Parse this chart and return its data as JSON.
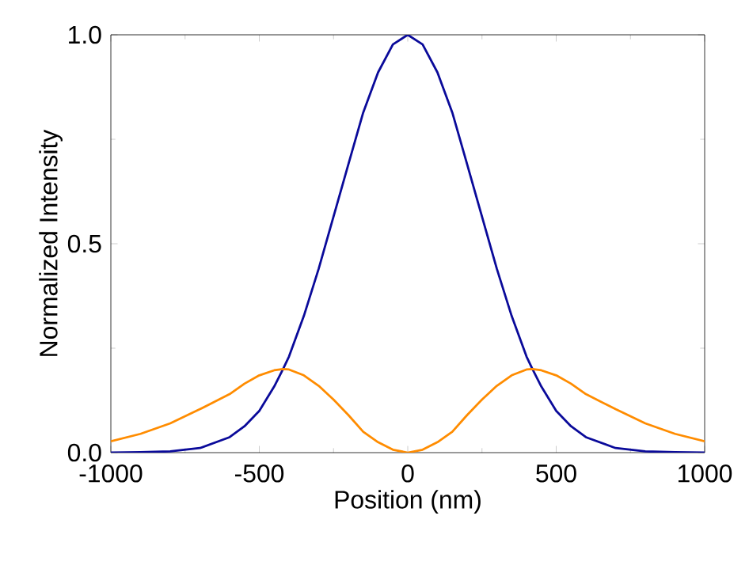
{
  "chart_data": {
    "type": "line",
    "xlabel": "Position (nm)",
    "ylabel": "Normalized Intensity",
    "xlim": [
      -1000,
      1000
    ],
    "ylim": [
      0,
      1
    ],
    "xticks": [
      -1000,
      -500,
      0,
      500,
      1000
    ],
    "yticks": [
      {
        "value": 0,
        "label": "0.0"
      },
      {
        "value": 0.5,
        "label": "0.5"
      },
      {
        "value": 1,
        "label": "1.0"
      }
    ],
    "x": [
      -1000,
      -900,
      -800,
      -700,
      -600,
      -550,
      -500,
      -450,
      -420,
      -400,
      -350,
      -300,
      -250,
      -200,
      -150,
      -100,
      -50,
      0,
      50,
      100,
      150,
      200,
      250,
      300,
      350,
      400,
      420,
      450,
      500,
      550,
      600,
      700,
      800,
      900,
      1000
    ],
    "series": [
      {
        "color": "#0a0a9a",
        "values": [
          0,
          0.001,
          0.003,
          0.011,
          0.037,
          0.063,
          0.1,
          0.158,
          0.2,
          0.23,
          0.327,
          0.44,
          0.565,
          0.69,
          0.814,
          0.91,
          0.977,
          1,
          0.977,
          0.91,
          0.814,
          0.69,
          0.565,
          0.44,
          0.327,
          0.23,
          0.2,
          0.158,
          0.1,
          0.063,
          0.037,
          0.011,
          0.003,
          0.001,
          0
        ]
      },
      {
        "color": "#ff8c00",
        "values": [
          0.027,
          0.045,
          0.07,
          0.104,
          0.14,
          0.165,
          0.185,
          0.197,
          0.2,
          0.199,
          0.185,
          0.16,
          0.127,
          0.09,
          0.05,
          0.025,
          0.007,
          0,
          0.007,
          0.025,
          0.05,
          0.09,
          0.127,
          0.16,
          0.185,
          0.199,
          0.2,
          0.197,
          0.185,
          0.165,
          0.14,
          0.104,
          0.07,
          0.045,
          0.027
        ]
      }
    ]
  }
}
